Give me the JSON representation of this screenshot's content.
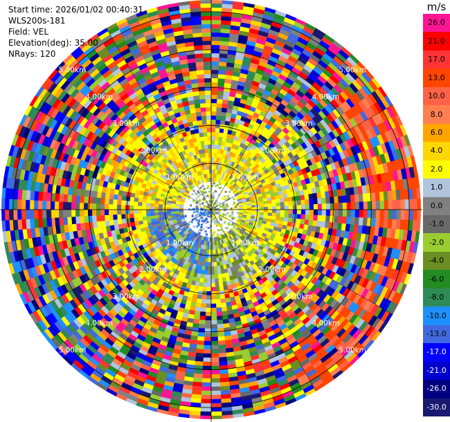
{
  "info": {
    "start_time": "Start time: 2026/01/02 00:40:31",
    "site": "WLS200s-181",
    "field": "Field: VEL",
    "elevation": "Elevation(deg): 35.00",
    "nrays": "NRays: 120"
  },
  "plot": {
    "field": "VEL",
    "elevation_deg": 35.0,
    "n_rays": 120,
    "range_rings_km": [
      1,
      2,
      3,
      4,
      5
    ],
    "ring_labels": [
      "1.00km",
      "2.00km",
      "3.00km",
      "4.00km",
      "5.00km"
    ]
  },
  "colorbar": {
    "unit": "m/s",
    "ticks": [
      "26.0",
      "21.0",
      "17.0",
      "13.0",
      "10.0",
      "8.0",
      "6.0",
      "4.0",
      "2.0",
      "1.0",
      "0.0",
      "-1.0",
      "-2.0",
      "-4.0",
      "-6.0",
      "-8.0",
      "-10.0",
      "-13.0",
      "-17.0",
      "-21.0",
      "-26.0",
      "-30.0"
    ],
    "colors": [
      "#ff1493",
      "#ff0000",
      "#ff3333",
      "#ff4500",
      "#ff6347",
      "#ff7f50",
      "#ffa500",
      "#ffd700",
      "#ffff00",
      "#b0c4de",
      "#808080",
      "#696969",
      "#9acd32",
      "#6b8e23",
      "#228b22",
      "#2e8b57",
      "#1e90ff",
      "#4169e1",
      "#0000ff",
      "#0000cd",
      "#000080",
      "#191970"
    ]
  }
}
